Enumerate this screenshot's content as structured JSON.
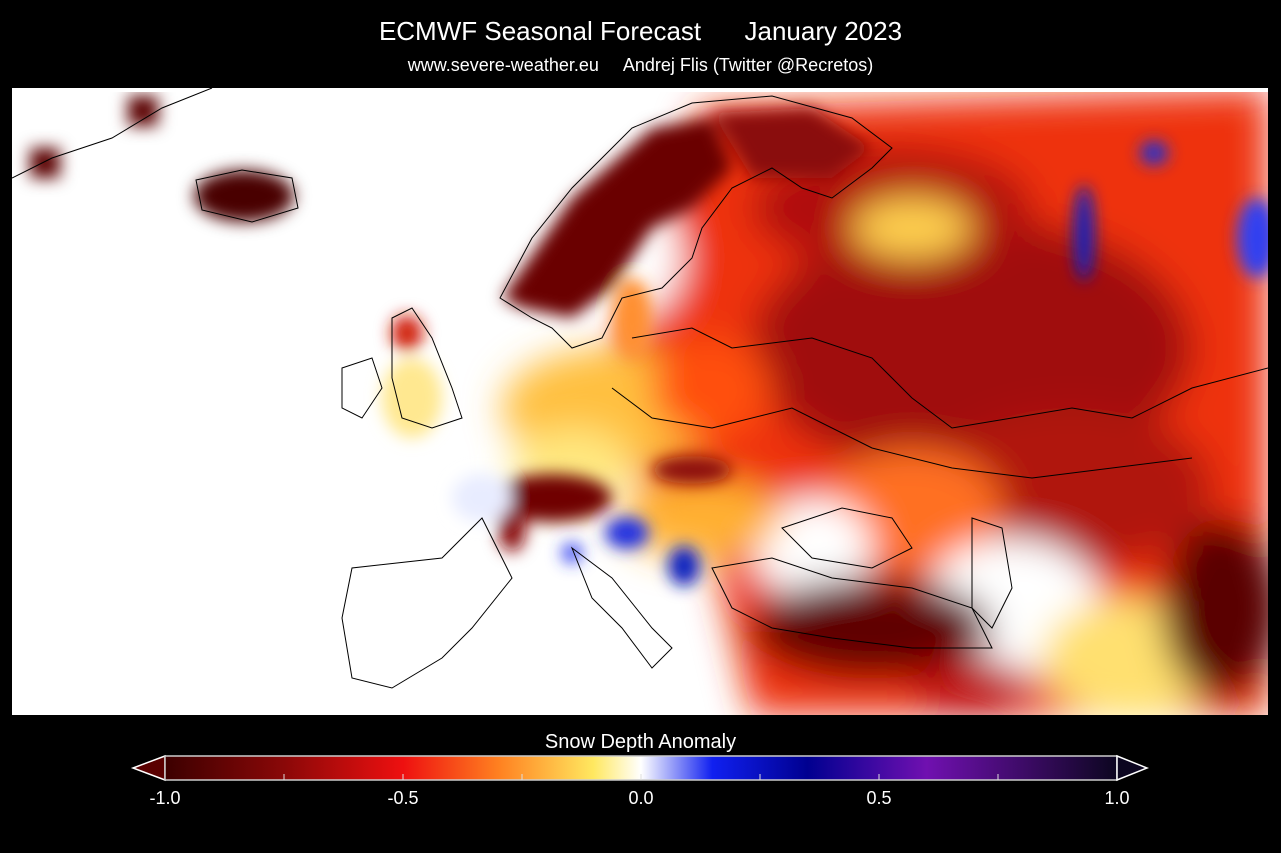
{
  "header": {
    "title": "ECMWF Seasonal Forecast      January 2023",
    "subtitle": "www.severe-weather.eu     Andrej Flis (Twitter @Recretos)"
  },
  "map": {
    "variable": "Snow Depth Anomaly",
    "region": "Europe",
    "background_color": "#ffffff",
    "coastline_color": "#000000"
  },
  "colorbar": {
    "label": "Snow Depth Anomaly",
    "range": [
      -1.0,
      1.0
    ],
    "tick_labels": [
      "-1.0",
      "-0.5",
      "0.0",
      "0.5",
      "1.0"
    ],
    "minor_tick_step": 0.25,
    "extend": "both",
    "colormap": [
      {
        "value": -1.0,
        "color": "#3c0000"
      },
      {
        "value": -0.75,
        "color": "#8a0808"
      },
      {
        "value": -0.5,
        "color": "#ee1010"
      },
      {
        "value": -0.3,
        "color": "#ff8020"
      },
      {
        "value": -0.1,
        "color": "#ffe860"
      },
      {
        "value": 0.0,
        "color": "#ffffff"
      },
      {
        "value": 0.15,
        "color": "#1020f0"
      },
      {
        "value": 0.35,
        "color": "#000090"
      },
      {
        "value": 0.6,
        "color": "#7010b0"
      },
      {
        "value": 1.0,
        "color": "#0c0620"
      }
    ]
  }
}
